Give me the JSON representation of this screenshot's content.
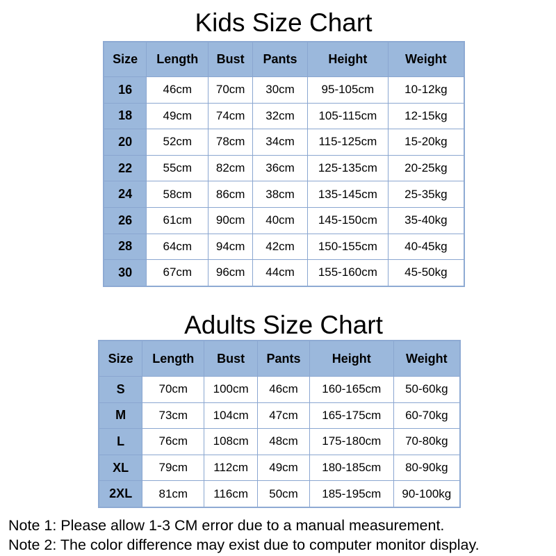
{
  "kids": {
    "title": "Kids Size Chart",
    "headers": [
      "Size",
      "Length",
      "Bust",
      "Pants",
      "Height",
      "Weight"
    ],
    "rows": [
      [
        "16",
        "46cm",
        "70cm",
        "30cm",
        "95-105cm",
        "10-12kg"
      ],
      [
        "18",
        "49cm",
        "74cm",
        "32cm",
        "105-115cm",
        "12-15kg"
      ],
      [
        "20",
        "52cm",
        "78cm",
        "34cm",
        "115-125cm",
        "15-20kg"
      ],
      [
        "22",
        "55cm",
        "82cm",
        "36cm",
        "125-135cm",
        "20-25kg"
      ],
      [
        "24",
        "58cm",
        "86cm",
        "38cm",
        "135-145cm",
        "25-35kg"
      ],
      [
        "26",
        "61cm",
        "90cm",
        "40cm",
        "145-150cm",
        "35-40kg"
      ],
      [
        "28",
        "64cm",
        "94cm",
        "42cm",
        "150-155cm",
        "40-45kg"
      ],
      [
        "30",
        "67cm",
        "96cm",
        "44cm",
        "155-160cm",
        "45-50kg"
      ]
    ]
  },
  "adults": {
    "title": "Adults Size Chart",
    "headers": [
      "Size",
      "Length",
      "Bust",
      "Pants",
      "Height",
      "Weight"
    ],
    "rows": [
      [
        "S",
        "70cm",
        "100cm",
        "46cm",
        "160-165cm",
        "50-60kg"
      ],
      [
        "M",
        "73cm",
        "104cm",
        "47cm",
        "165-175cm",
        "60-70kg"
      ],
      [
        "L",
        "76cm",
        "108cm",
        "48cm",
        "175-180cm",
        "70-80kg"
      ],
      [
        "XL",
        "79cm",
        "112cm",
        "49cm",
        "180-185cm",
        "80-90kg"
      ],
      [
        "2XL",
        "81cm",
        "116cm",
        "50cm",
        "185-195cm",
        "90-100kg"
      ]
    ]
  },
  "notes": [
    "Note 1: Please allow 1-3 CM error due to a manual measurement.",
    "Note 2: The color difference may exist due to computer monitor display."
  ],
  "colors": {
    "header_bg": "#9bb8dc",
    "border": "#8aa6d0"
  }
}
